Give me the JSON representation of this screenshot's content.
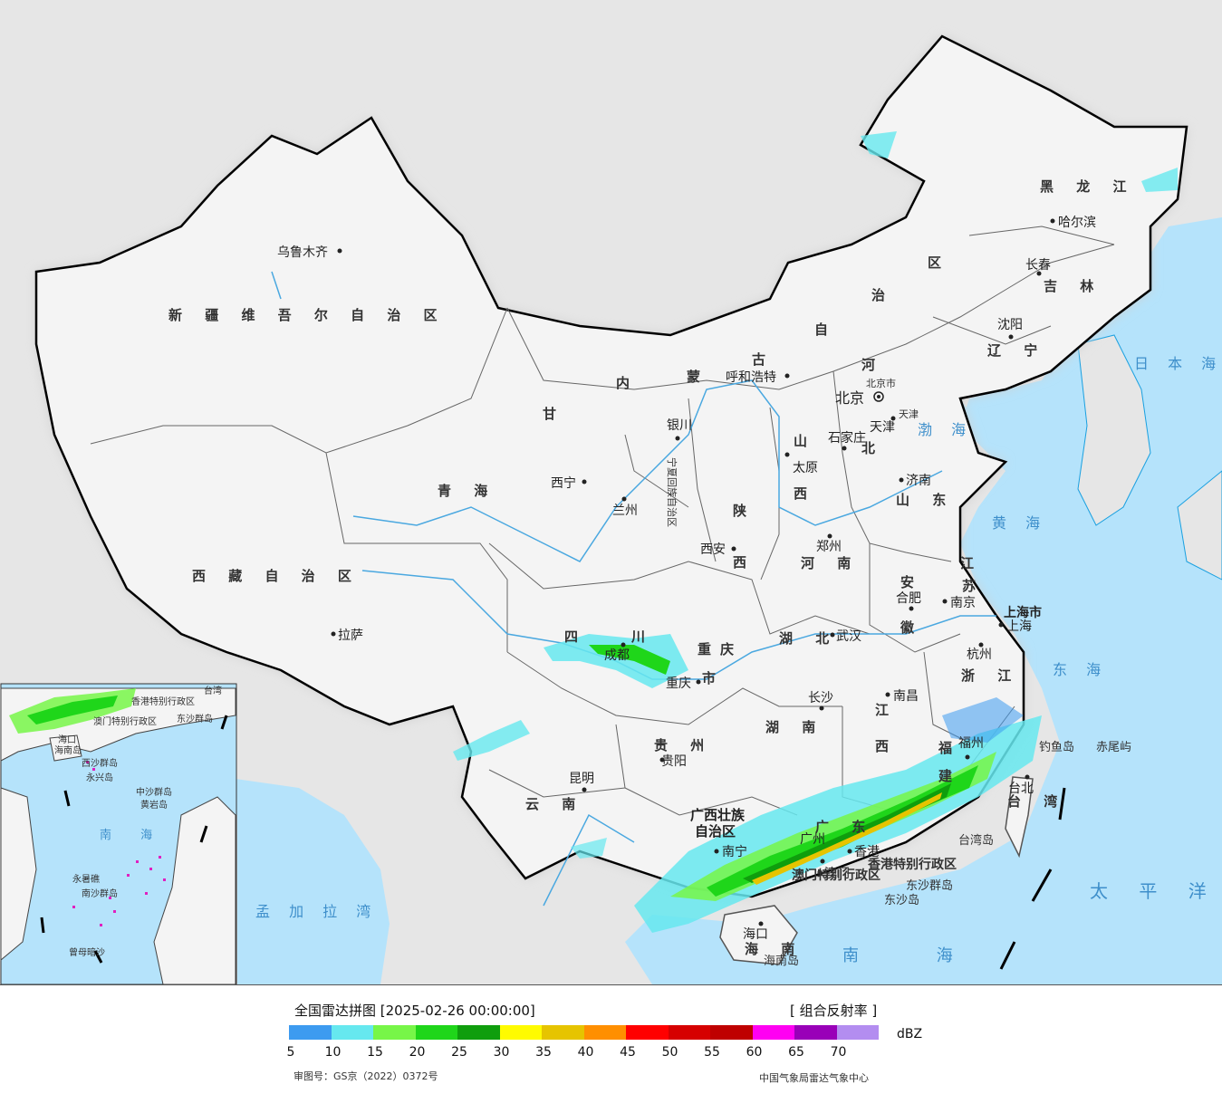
{
  "map": {
    "provinces": [
      {
        "name": "新 疆 维 吾 尔 自 治 区"
      },
      {
        "name": "西 藏 自 治 区"
      },
      {
        "name": "青 海"
      },
      {
        "name": "甘"
      },
      {
        "name": "内"
      },
      {
        "name": "蒙"
      },
      {
        "name": "古"
      },
      {
        "name": "自"
      },
      {
        "name": "治"
      },
      {
        "name": "区"
      },
      {
        "name": "黑 龙 江"
      },
      {
        "name": "吉 林"
      },
      {
        "name": "辽 宁"
      },
      {
        "name": "河"
      },
      {
        "name": "北"
      },
      {
        "name": "山"
      },
      {
        "name": "西"
      },
      {
        "name": "山 东"
      },
      {
        "name": "陕"
      },
      {
        "name": "西"
      },
      {
        "name": "河 南"
      },
      {
        "name": "江"
      },
      {
        "name": "苏"
      },
      {
        "name": "安"
      },
      {
        "name": "徽"
      },
      {
        "name": "四"
      },
      {
        "name": "川"
      },
      {
        "name": "重庆"
      },
      {
        "name": "市"
      },
      {
        "name": "湖 北"
      },
      {
        "name": "浙 江"
      },
      {
        "name": "江"
      },
      {
        "name": "西"
      },
      {
        "name": "湖 南"
      },
      {
        "name": "贵 州"
      },
      {
        "name": "云 南"
      },
      {
        "name": "福"
      },
      {
        "name": "建"
      },
      {
        "name": "广西壮族"
      },
      {
        "name": "自治区"
      },
      {
        "name": "广 东"
      },
      {
        "name": "海 南"
      },
      {
        "name": "台 湾"
      },
      {
        "name": "宁夏回族自治区"
      },
      {
        "name": "上海市"
      },
      {
        "name": "天津"
      },
      {
        "name": "北京市"
      }
    ],
    "cities": [
      {
        "name": "乌鲁木齐"
      },
      {
        "name": "拉萨"
      },
      {
        "name": "西宁"
      },
      {
        "name": "兰州"
      },
      {
        "name": "银川"
      },
      {
        "name": "呼和浩特"
      },
      {
        "name": "哈尔滨"
      },
      {
        "name": "长春"
      },
      {
        "name": "沈阳"
      },
      {
        "name": "北京"
      },
      {
        "name": "天津"
      },
      {
        "name": "石家庄"
      },
      {
        "name": "太原"
      },
      {
        "name": "济南"
      },
      {
        "name": "西安"
      },
      {
        "name": "郑州"
      },
      {
        "name": "合肥"
      },
      {
        "name": "南京"
      },
      {
        "name": "上海"
      },
      {
        "name": "杭州"
      },
      {
        "name": "成都"
      },
      {
        "name": "重庆"
      },
      {
        "name": "武汉"
      },
      {
        "name": "长沙"
      },
      {
        "name": "南昌"
      },
      {
        "name": "福州"
      },
      {
        "name": "台北"
      },
      {
        "name": "贵阳"
      },
      {
        "name": "昆明"
      },
      {
        "name": "南宁"
      },
      {
        "name": "广州"
      },
      {
        "name": "香港"
      },
      {
        "name": "澳门"
      },
      {
        "name": "海口"
      }
    ],
    "seas": [
      {
        "name": "日 本 海"
      },
      {
        "name": "渤 海"
      },
      {
        "name": "黄 海"
      },
      {
        "name": "东 海"
      },
      {
        "name": "太 平 洋"
      },
      {
        "name": "南 海"
      },
      {
        "name": "孟 加 拉 湾"
      }
    ],
    "islands": [
      {
        "name": "钓鱼岛"
      },
      {
        "name": "赤尾屿"
      },
      {
        "name": "台湾岛"
      },
      {
        "name": "东沙群岛"
      },
      {
        "name": "东沙岛"
      },
      {
        "name": "海南岛"
      },
      {
        "name": "香港特别行政区"
      },
      {
        "name": "澳门特别行政区"
      }
    ],
    "inset_labels": [
      {
        "name": "香港特别行政区"
      },
      {
        "name": "澳门特别行政区"
      },
      {
        "name": "东沙群岛"
      },
      {
        "name": "海口"
      },
      {
        "name": "海南岛"
      },
      {
        "name": "西沙群岛"
      },
      {
        "name": "永兴岛"
      },
      {
        "name": "中沙群岛"
      },
      {
        "name": "黄岩岛"
      },
      {
        "name": "南 海"
      },
      {
        "name": "永暑礁"
      },
      {
        "name": "南沙群岛"
      },
      {
        "name": "曾母暗沙"
      },
      {
        "name": "台湾"
      }
    ]
  },
  "legend": {
    "title": "全国雷达拼图 [2025-02-26 00:00:00]",
    "product": "[ 组合反射率 ]",
    "unit": "dBZ",
    "colors": [
      "#3d9bf0",
      "#66e8ef",
      "#77f648",
      "#1fd61a",
      "#0f9e0d",
      "#fffb00",
      "#e6c400",
      "#ff8f00",
      "#ff0000",
      "#d60000",
      "#bf0000",
      "#ff00f2",
      "#9900b8",
      "#b38df0"
    ],
    "ticks": [
      "5",
      "10",
      "15",
      "20",
      "25",
      "30",
      "35",
      "40",
      "45",
      "50",
      "55",
      "60",
      "65",
      "70"
    ],
    "review_number": "审图号：GS京（2022）0372号",
    "agency": "中国气象局雷达气象中心"
  }
}
